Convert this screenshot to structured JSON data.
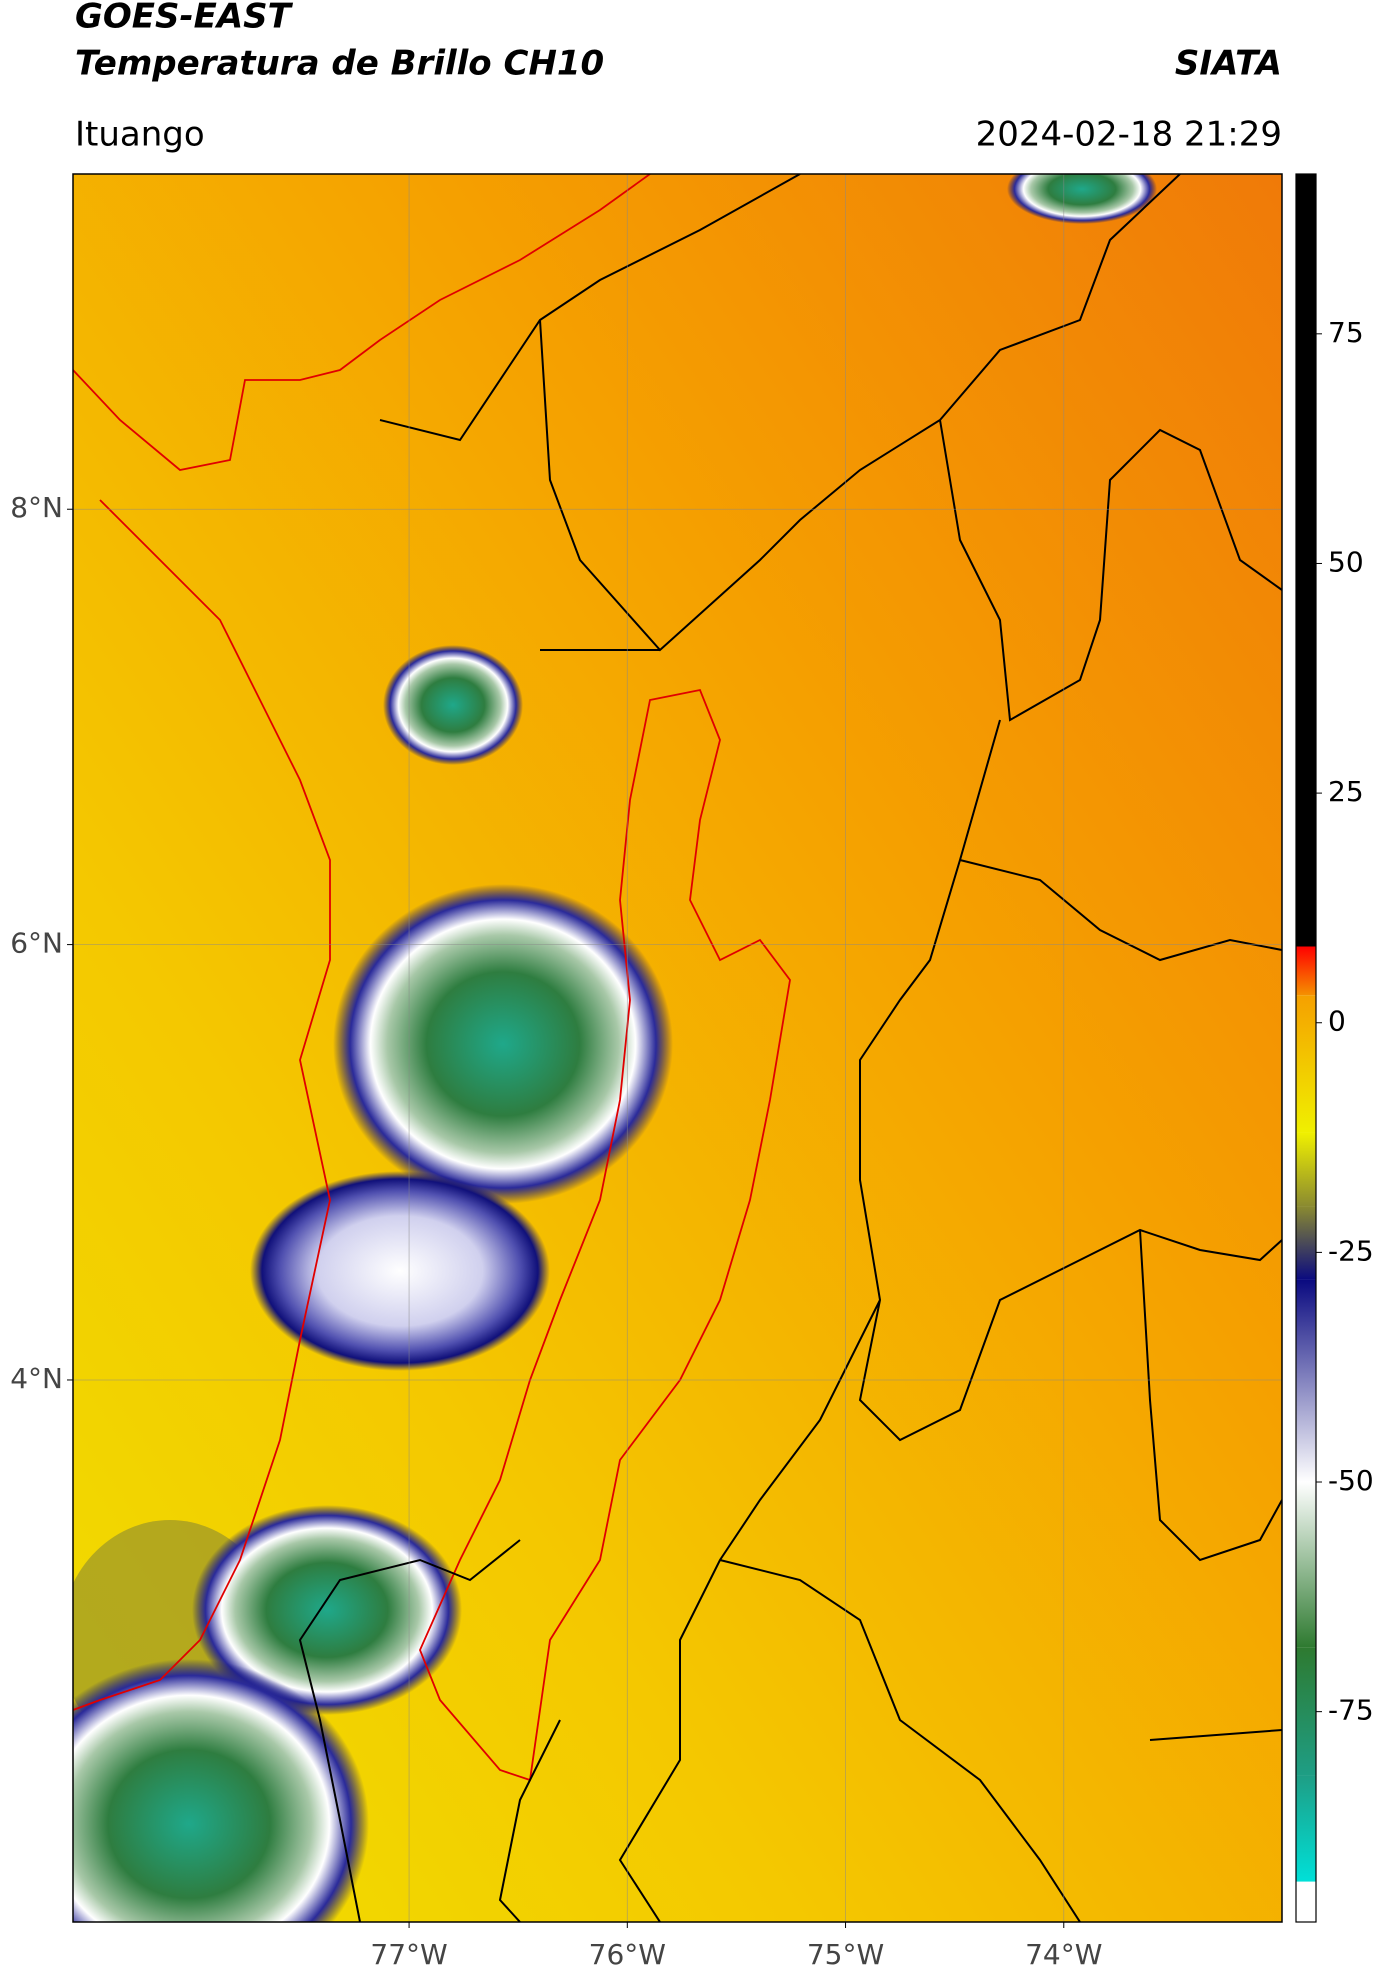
{
  "chart_data": {
    "type": "map",
    "title": "GOES-EAST",
    "subtitle": "Temperatura de Brillo CH10",
    "source": "SIATA",
    "location": "Ituango",
    "timestamp": "2024-02-18 21:29",
    "xlim": [
      -78.54,
      -73.0
    ],
    "ylim": [
      1.51,
      9.54
    ],
    "xticks": [
      {
        "value": -77,
        "label": "77°W"
      },
      {
        "value": -76,
        "label": "76°W"
      },
      {
        "value": -75,
        "label": "75°W"
      },
      {
        "value": -74,
        "label": "74°W"
      }
    ],
    "yticks": [
      {
        "value": 4,
        "label": "4°N"
      },
      {
        "value": 6,
        "label": "6°N"
      },
      {
        "value": 8,
        "label": "8°N"
      }
    ],
    "grid": true,
    "colorbar": {
      "lim": [
        -97.9,
        92.4
      ],
      "ticks": [
        -75,
        -50,
        -25,
        0,
        25,
        50,
        75
      ],
      "segments": [
        {
          "from": -97.9,
          "to": -93.5,
          "colors": [
            "#ffffff",
            "#ffffff"
          ]
        },
        {
          "from": -93.5,
          "to": -82,
          "colors": [
            "#00e0d8",
            "#1e9e85"
          ]
        },
        {
          "from": -82,
          "to": -68,
          "colors": [
            "#1e9e85",
            "#2e7a30"
          ]
        },
        {
          "from": -68,
          "to": -50,
          "colors": [
            "#2e7a30",
            "#ffffff"
          ]
        },
        {
          "from": -50,
          "to": -28,
          "colors": [
            "#ffffff",
            "#0a0a80"
          ]
        },
        {
          "from": -28,
          "to": -20,
          "colors": [
            "#0a0a80",
            "#8a8a30"
          ]
        },
        {
          "from": -20,
          "to": -12,
          "colors": [
            "#8a8a30",
            "#f0f000"
          ]
        },
        {
          "from": -12,
          "to": 3,
          "colors": [
            "#f0f000",
            "#f5a000"
          ]
        },
        {
          "from": 3,
          "to": 8.3,
          "colors": [
            "#f59000",
            "#ff0000"
          ]
        },
        {
          "from": 8.3,
          "to": 92.4,
          "colors": [
            "#000000",
            "#000000"
          ]
        }
      ]
    }
  }
}
